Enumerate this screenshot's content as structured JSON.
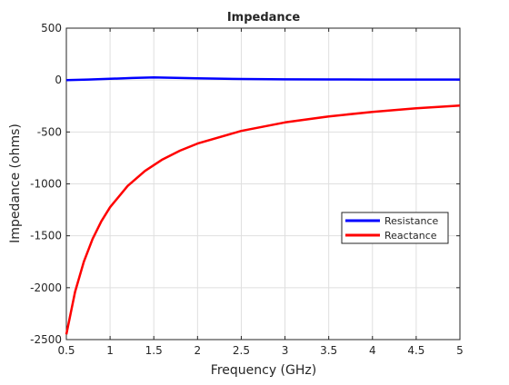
{
  "chart_data": {
    "type": "line",
    "title": "Impedance",
    "xlabel": "Frequency (GHz)",
    "ylabel": "Impedance (ohms)",
    "xlim": [
      0.5,
      5
    ],
    "ylim": [
      -2500,
      500
    ],
    "xticks": [
      0.5,
      1,
      1.5,
      2,
      2.5,
      3,
      3.5,
      4,
      4.5,
      5
    ],
    "xtick_labels": [
      "0.5",
      "1",
      "1.5",
      "2",
      "2.5",
      "3",
      "3.5",
      "4",
      "4.5",
      "5"
    ],
    "yticks": [
      -2500,
      -2000,
      -1500,
      -1000,
      -500,
      0,
      500
    ],
    "ytick_labels": [
      "-2500",
      "-2000",
      "-1500",
      "-1000",
      "-500",
      "0",
      "500"
    ],
    "grid": true,
    "legend_position": "right",
    "series": [
      {
        "name": "Resistance",
        "color": "#0000ff",
        "x": [
          0.5,
          0.75,
          1.0,
          1.25,
          1.5,
          1.75,
          2.0,
          2.5,
          3.0,
          3.5,
          4.0,
          4.5,
          5.0
        ],
        "values": [
          0,
          5,
          12,
          20,
          25,
          22,
          16,
          10,
          7,
          6,
          5,
          5,
          5
        ]
      },
      {
        "name": "Reactance",
        "color": "#ff0000",
        "x": [
          0.5,
          0.6,
          0.7,
          0.8,
          0.9,
          1.0,
          1.2,
          1.4,
          1.6,
          1.8,
          2.0,
          2.5,
          3.0,
          3.5,
          4.0,
          4.5,
          5.0
        ],
        "values": [
          -2450,
          -2040,
          -1750,
          -1530,
          -1360,
          -1225,
          -1020,
          -875,
          -765,
          -680,
          -612,
          -490,
          -408,
          -350,
          -306,
          -272,
          -245
        ]
      }
    ]
  }
}
